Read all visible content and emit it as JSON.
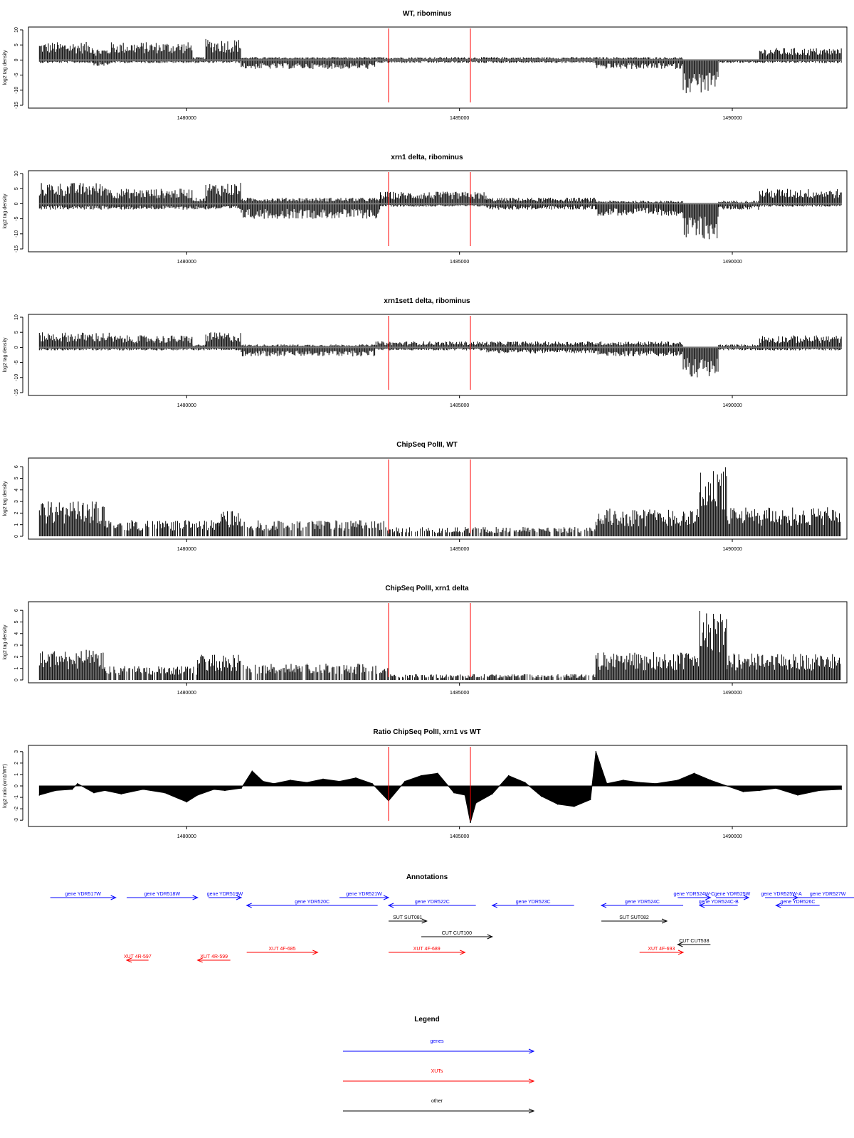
{
  "colors": {
    "signal": "#000000",
    "marker": "#ff0000",
    "gene": "#0000ff",
    "xut": "#ff0000",
    "other": "#000000",
    "frame": "#000000",
    "baseline": "#777777"
  },
  "x_range": [
    1477100,
    1492100
  ],
  "x_ticks": [
    "1480000",
    "1485000",
    "1490000"
  ],
  "x_tick_values": [
    1480000,
    1485000,
    1490000
  ],
  "marker_positions": [
    1483700,
    1485200
  ],
  "chart_data": [
    {
      "type": "area",
      "title": "WT, ribominus",
      "ylabel": "log2 tag density",
      "ylim": [
        -15,
        10
      ],
      "yticks": [
        "-15",
        "-10",
        "-5",
        "0",
        "5",
        "10"
      ],
      "ytick_values": [
        -15,
        -10,
        -5,
        0,
        5,
        10
      ],
      "profile": [
        {
          "x": [
            1477300,
            1478300
          ],
          "pos": 6,
          "neg": -1
        },
        {
          "x": [
            1478300,
            1478600
          ],
          "pos": 4,
          "neg": -2
        },
        {
          "x": [
            1478600,
            1480100
          ],
          "pos": 6,
          "neg": -1
        },
        {
          "x": [
            1480100,
            1480350
          ],
          "pos": 1,
          "neg": -1
        },
        {
          "x": [
            1480350,
            1481000
          ],
          "pos": 7,
          "neg": -1
        },
        {
          "x": [
            1481000,
            1483450
          ],
          "pos": 1,
          "neg": -3
        },
        {
          "x": [
            1483450,
            1485000
          ],
          "pos": 1,
          "neg": -1
        },
        {
          "x": [
            1485000,
            1487500
          ],
          "pos": 1,
          "neg": -1
        },
        {
          "x": [
            1487500,
            1489100
          ],
          "pos": 1,
          "neg": -3
        },
        {
          "x": [
            1489100,
            1489750
          ],
          "pos": 0,
          "neg": -11
        },
        {
          "x": [
            1489750,
            1490500
          ],
          "pos": 0,
          "neg": -1
        },
        {
          "x": [
            1490500,
            1492000
          ],
          "pos": 4,
          "neg": -1
        }
      ]
    },
    {
      "type": "area",
      "title": "xrn1 delta, ribominus",
      "ylabel": "log2 tag density",
      "ylim": [
        -15,
        10
      ],
      "yticks": [
        "-15",
        "-10",
        "-5",
        "0",
        "5",
        "10"
      ],
      "ytick_values": [
        -15,
        -10,
        -5,
        0,
        5,
        10
      ],
      "profile": [
        {
          "x": [
            1477300,
            1478600
          ],
          "pos": 7,
          "neg": -2
        },
        {
          "x": [
            1478600,
            1480100
          ],
          "pos": 5,
          "neg": -2
        },
        {
          "x": [
            1480100,
            1480350
          ],
          "pos": 2,
          "neg": -2
        },
        {
          "x": [
            1480350,
            1481000
          ],
          "pos": 7,
          "neg": -2
        },
        {
          "x": [
            1481000,
            1483550
          ],
          "pos": 2,
          "neg": -5
        },
        {
          "x": [
            1483550,
            1485500
          ],
          "pos": 4,
          "neg": -1
        },
        {
          "x": [
            1485500,
            1487500
          ],
          "pos": 2,
          "neg": -2
        },
        {
          "x": [
            1487500,
            1489100
          ],
          "pos": 1,
          "neg": -4
        },
        {
          "x": [
            1489100,
            1489750
          ],
          "pos": 0,
          "neg": -12
        },
        {
          "x": [
            1489750,
            1490500
          ],
          "pos": 1,
          "neg": -2
        },
        {
          "x": [
            1490500,
            1492000
          ],
          "pos": 5,
          "neg": -1
        }
      ]
    },
    {
      "type": "area",
      "title": "xrn1set1 delta, ribominus",
      "ylabel": "log2 tag density",
      "ylim": [
        -15,
        10
      ],
      "yticks": [
        "-15",
        "-10",
        "-5",
        "0",
        "5",
        "10"
      ],
      "ytick_values": [
        -15,
        -10,
        -5,
        0,
        5,
        10
      ],
      "profile": [
        {
          "x": [
            1477300,
            1478600
          ],
          "pos": 5,
          "neg": -1
        },
        {
          "x": [
            1478600,
            1480100
          ],
          "pos": 4,
          "neg": -1
        },
        {
          "x": [
            1480100,
            1480350
          ],
          "pos": 1,
          "neg": -1
        },
        {
          "x": [
            1480350,
            1481000
          ],
          "pos": 5,
          "neg": -1
        },
        {
          "x": [
            1481000,
            1483450
          ],
          "pos": 1,
          "neg": -3
        },
        {
          "x": [
            1483450,
            1485500
          ],
          "pos": 2,
          "neg": -1
        },
        {
          "x": [
            1485500,
            1487500
          ],
          "pos": 2,
          "neg": -2
        },
        {
          "x": [
            1487500,
            1489100
          ],
          "pos": 2,
          "neg": -3
        },
        {
          "x": [
            1489100,
            1489750
          ],
          "pos": 0,
          "neg": -10
        },
        {
          "x": [
            1489750,
            1490500
          ],
          "pos": 1,
          "neg": -1
        },
        {
          "x": [
            1490500,
            1492000
          ],
          "pos": 4,
          "neg": -1
        }
      ]
    },
    {
      "type": "bar",
      "title": "ChipSeq PolII, WT",
      "ylabel": "log2 tag density",
      "ylim": [
        0,
        6.5
      ],
      "yticks": [
        "0",
        "1",
        "2",
        "3",
        "4",
        "5",
        "6"
      ],
      "ytick_values": [
        0,
        1,
        2,
        3,
        4,
        5,
        6
      ],
      "profile": [
        {
          "x": [
            1477300,
            1478500
          ],
          "pos": 3,
          "neg": 0
        },
        {
          "x": [
            1478500,
            1480600
          ],
          "pos": 1.4,
          "neg": 0
        },
        {
          "x": [
            1480600,
            1481000
          ],
          "pos": 2.2,
          "neg": 0
        },
        {
          "x": [
            1481000,
            1483700
          ],
          "pos": 1.4,
          "neg": 0
        },
        {
          "x": [
            1483700,
            1487500
          ],
          "pos": 0.8,
          "neg": 0
        },
        {
          "x": [
            1487500,
            1489400
          ],
          "pos": 2.4,
          "neg": 0
        },
        {
          "x": [
            1489400,
            1489900
          ],
          "pos": 6,
          "neg": 0
        },
        {
          "x": [
            1489900,
            1492000
          ],
          "pos": 2.5,
          "neg": 0
        }
      ]
    },
    {
      "type": "bar",
      "title": "ChipSeq PolII, xrn1 delta",
      "ylabel": "log2 tag density",
      "ylim": [
        0,
        6.5
      ],
      "yticks": [
        "0",
        "1",
        "2",
        "3",
        "4",
        "5",
        "6"
      ],
      "ytick_values": [
        0,
        1,
        2,
        3,
        4,
        5,
        6
      ],
      "profile": [
        {
          "x": [
            1477300,
            1478500
          ],
          "pos": 2.6,
          "neg": 0
        },
        {
          "x": [
            1478500,
            1480200
          ],
          "pos": 1.2,
          "neg": 0
        },
        {
          "x": [
            1480200,
            1481000
          ],
          "pos": 2.2,
          "neg": 0
        },
        {
          "x": [
            1481000,
            1483700
          ],
          "pos": 1.4,
          "neg": 0
        },
        {
          "x": [
            1483700,
            1487500
          ],
          "pos": 0.5,
          "neg": 0
        },
        {
          "x": [
            1487500,
            1489400
          ],
          "pos": 2.4,
          "neg": 0
        },
        {
          "x": [
            1489400,
            1489900
          ],
          "pos": 6,
          "neg": 0
        },
        {
          "x": [
            1489900,
            1492000
          ],
          "pos": 2.3,
          "neg": 0
        }
      ]
    },
    {
      "type": "area",
      "title": "Ratio ChipSeq PolII, xrn1 vs WT",
      "ylabel": "log2 ratio (xrn1/WT)",
      "ylim": [
        -3.3,
        3.3
      ],
      "yticks": [
        "-3",
        "-2",
        "-1",
        "0",
        "1",
        "2",
        "3"
      ],
      "ytick_values": [
        -3,
        -2,
        -1,
        0,
        1,
        2,
        3
      ],
      "series": [
        {
          "x": [
            1477300,
            1477600,
            1477900,
            1478000,
            1478300,
            1478500,
            1478800,
            1479200,
            1479600,
            1480000,
            1480200,
            1480500,
            1480700,
            1481000,
            1481200,
            1481400,
            1481600,
            1481900,
            1482200,
            1482500,
            1482800,
            1483100,
            1483400,
            1483700,
            1484000,
            1484300,
            1484600,
            1484900,
            1485100,
            1485200,
            1485300,
            1485600,
            1485900,
            1486200,
            1486500,
            1486800,
            1487100,
            1487400,
            1487500,
            1487700,
            1488000,
            1488300,
            1488600,
            1489000,
            1489300,
            1489600,
            1489900,
            1490200,
            1490500,
            1490800,
            1491200,
            1491600,
            1492000
          ],
          "y": [
            -0.8,
            -0.4,
            -0.3,
            0.2,
            -0.6,
            -0.4,
            -0.7,
            -0.3,
            -0.6,
            -1.4,
            -0.8,
            -0.3,
            -0.4,
            -0.2,
            1.3,
            0.4,
            0.2,
            0.5,
            0.3,
            0.6,
            0.4,
            0.7,
            0.2,
            -1.3,
            0.4,
            0.9,
            1.1,
            -0.6,
            -0.8,
            -3.2,
            -1.5,
            -0.7,
            0.9,
            0.3,
            -0.9,
            -1.6,
            -1.8,
            -1.2,
            3.0,
            0.2,
            0.5,
            0.3,
            0.2,
            0.5,
            1.1,
            0.5,
            0.0,
            -0.5,
            -0.4,
            -0.2,
            -0.8,
            -0.4,
            -0.3
          ]
        }
      ]
    }
  ],
  "annotations": {
    "title": "Annotations",
    "features": [
      {
        "label": "gene YDR517W",
        "x0": 1477500,
        "x1": 1478700,
        "row": 0,
        "strand": "+",
        "kind": "gene"
      },
      {
        "label": "gene YDR518W",
        "x0": 1478900,
        "x1": 1480200,
        "row": 0,
        "strand": "+",
        "kind": "gene"
      },
      {
        "label": "gene YDR519W",
        "x0": 1480400,
        "x1": 1481000,
        "row": 0,
        "strand": "+",
        "kind": "gene"
      },
      {
        "label": "gene YDR520C",
        "x0": 1481100,
        "x1": 1483500,
        "row": 1,
        "strand": "-",
        "kind": "gene"
      },
      {
        "label": "gene YDR521W",
        "x0": 1482800,
        "x1": 1483700,
        "row": 0,
        "strand": "+",
        "kind": "gene"
      },
      {
        "label": "gene YDR522C",
        "x0": 1483700,
        "x1": 1485300,
        "row": 1,
        "strand": "-",
        "kind": "gene"
      },
      {
        "label": "gene YDR523C",
        "x0": 1485600,
        "x1": 1487100,
        "row": 1,
        "strand": "-",
        "kind": "gene"
      },
      {
        "label": "gene YDR524C",
        "x0": 1487600,
        "x1": 1489100,
        "row": 1,
        "strand": "-",
        "kind": "gene"
      },
      {
        "label": "gene YDR524W-C",
        "x0": 1489000,
        "x1": 1489600,
        "row": 0,
        "strand": "+",
        "kind": "gene"
      },
      {
        "label": "gene YDR525W",
        "x0": 1489700,
        "x1": 1490300,
        "row": 0,
        "strand": "+",
        "kind": "gene"
      },
      {
        "label": "gene YDR525W-A",
        "x0": 1490600,
        "x1": 1491200,
        "row": 0,
        "strand": "+",
        "kind": "gene"
      },
      {
        "label": "gene YDR524C-B",
        "x0": 1489400,
        "x1": 1490100,
        "row": 1,
        "strand": "-",
        "kind": "gene"
      },
      {
        "label": "gene YDR526C",
        "x0": 1490800,
        "x1": 1491600,
        "row": 1,
        "strand": "-",
        "kind": "gene"
      },
      {
        "label": "gene YDR527W",
        "x0": 1491100,
        "x1": 1492400,
        "row": 0,
        "strand": "+",
        "kind": "gene"
      },
      {
        "label": "SUT SUT081",
        "x0": 1483700,
        "x1": 1484400,
        "row": 3,
        "strand": "+",
        "kind": "other"
      },
      {
        "label": "SUT SUT082",
        "x0": 1487600,
        "x1": 1488800,
        "row": 3,
        "strand": "+",
        "kind": "other"
      },
      {
        "label": "CUT CUT100",
        "x0": 1484300,
        "x1": 1485600,
        "row": 5,
        "strand": "+",
        "kind": "other"
      },
      {
        "label": "CUT CUT538",
        "x0": 1489000,
        "x1": 1489600,
        "row": 6,
        "strand": "-",
        "kind": "other"
      },
      {
        "label": "XUT 4R-597",
        "x0": 1478900,
        "x1": 1479300,
        "row": 8,
        "strand": "-",
        "kind": "xut"
      },
      {
        "label": "XUT 4R-599",
        "x0": 1480200,
        "x1": 1480800,
        "row": 8,
        "strand": "-",
        "kind": "xut"
      },
      {
        "label": "XUT 4F-685",
        "x0": 1481100,
        "x1": 1482400,
        "row": 7,
        "strand": "+",
        "kind": "xut"
      },
      {
        "label": "XUT 4F-689",
        "x0": 1483700,
        "x1": 1485100,
        "row": 7,
        "strand": "+",
        "kind": "xut"
      },
      {
        "label": "XUT 4F-693",
        "x0": 1488300,
        "x1": 1489100,
        "row": 7,
        "strand": "+",
        "kind": "xut"
      }
    ]
  },
  "legend": {
    "title": "Legend",
    "items": [
      {
        "label": "genes",
        "kind": "gene"
      },
      {
        "label": "XUTs",
        "kind": "xut"
      },
      {
        "label": "other",
        "kind": "other"
      }
    ]
  }
}
